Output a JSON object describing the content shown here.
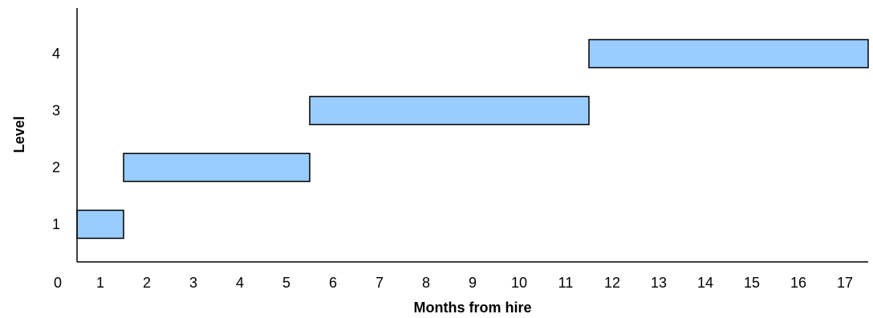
{
  "chart_data": {
    "type": "bar",
    "orientation": "horizontal-range",
    "title": "",
    "xlabel": "Months from hire",
    "ylabel": "Level",
    "x_ticks": [
      "0",
      "1",
      "2",
      "3",
      "4",
      "5",
      "6",
      "7",
      "8",
      "9",
      "10",
      "11",
      "12",
      "13",
      "14",
      "15",
      "16",
      "17"
    ],
    "y_ticks": [
      "1",
      "2",
      "3",
      "4"
    ],
    "xlim": [
      0,
      17.5
    ],
    "ylim": [
      0,
      4.6
    ],
    "grid": false,
    "legend": "none",
    "bar_color": "#99ccff",
    "bar_edge_color": "#000000",
    "bars": [
      {
        "level": 1,
        "start": 0.5,
        "end": 1.5
      },
      {
        "level": 2,
        "start": 1.5,
        "end": 5.5
      },
      {
        "level": 3,
        "start": 5.5,
        "end": 11.5
      },
      {
        "level": 4,
        "start": 11.5,
        "end": 17.5
      }
    ]
  }
}
